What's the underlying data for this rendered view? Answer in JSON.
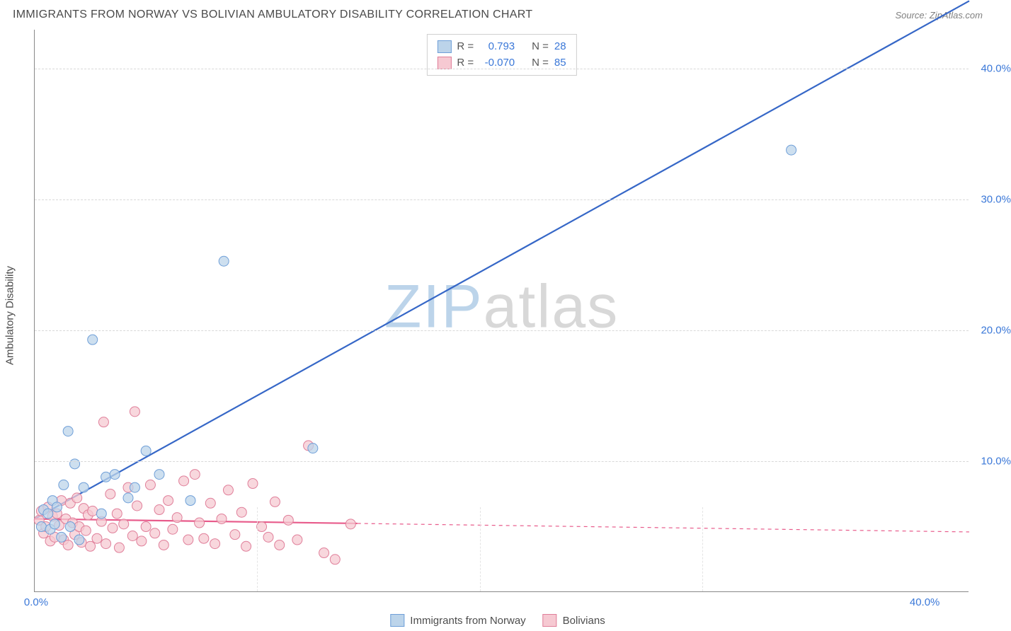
{
  "header": {
    "title": "IMMIGRANTS FROM NORWAY VS BOLIVIAN AMBULATORY DISABILITY CORRELATION CHART",
    "source_prefix": "Source: ",
    "source": "ZipAtlas.com"
  },
  "axes": {
    "y_label": "Ambulatory Disability",
    "x_domain": [
      0,
      42
    ],
    "y_domain": [
      0,
      43
    ],
    "y_ticks": [
      10,
      20,
      30,
      40
    ],
    "y_tick_labels": [
      "10.0%",
      "20.0%",
      "30.0%",
      "40.0%"
    ],
    "x_ticks_minor": [
      10,
      20,
      30
    ],
    "x_tick_left_label": "0.0%",
    "x_tick_right_label": "40.0%",
    "tick_color": "#3b78d8",
    "grid_color": "#d8d8d8"
  },
  "watermark": {
    "zip": "ZIP",
    "atlas": "atlas"
  },
  "series": {
    "norway": {
      "label": "Immigrants from Norway",
      "marker_fill": "#bcd4ea",
      "marker_stroke": "#6f9fd8",
      "line_color": "#3667c7",
      "line_width": 2.2,
      "marker_radius": 7,
      "fit_x": [
        0,
        42
      ],
      "fit_y": [
        5.6,
        45.2
      ],
      "points": [
        [
          0.3,
          5.0
        ],
        [
          0.4,
          6.3
        ],
        [
          0.6,
          6.0
        ],
        [
          0.7,
          4.8
        ],
        [
          0.8,
          7.0
        ],
        [
          0.9,
          5.2
        ],
        [
          1.0,
          6.5
        ],
        [
          1.2,
          4.2
        ],
        [
          1.3,
          8.2
        ],
        [
          1.5,
          12.3
        ],
        [
          1.6,
          5.0
        ],
        [
          1.8,
          9.8
        ],
        [
          2.0,
          4.0
        ],
        [
          2.2,
          8.0
        ],
        [
          2.6,
          19.3
        ],
        [
          3.0,
          6.0
        ],
        [
          3.2,
          8.8
        ],
        [
          3.6,
          9.0
        ],
        [
          4.2,
          7.2
        ],
        [
          4.5,
          8.0
        ],
        [
          5.0,
          10.8
        ],
        [
          5.6,
          9.0
        ],
        [
          7.0,
          7.0
        ],
        [
          8.5,
          25.3
        ],
        [
          12.5,
          11.0
        ],
        [
          34.0,
          33.8
        ]
      ]
    },
    "bolivian": {
      "label": "Bolivians",
      "marker_fill": "#f6c9d2",
      "marker_stroke": "#e07f9a",
      "line_color": "#e85b8b",
      "line_width": 2.2,
      "marker_radius": 7,
      "fit_solid_x": [
        0,
        14.5
      ],
      "fit_solid_y": [
        5.6,
        5.25
      ],
      "fit_dash_x": [
        14.5,
        42
      ],
      "fit_dash_y": [
        5.25,
        4.6
      ],
      "points": [
        [
          0.2,
          5.5
        ],
        [
          0.3,
          6.2
        ],
        [
          0.4,
          4.5
        ],
        [
          0.5,
          5.0
        ],
        [
          0.6,
          6.5
        ],
        [
          0.7,
          3.9
        ],
        [
          0.8,
          5.8
        ],
        [
          0.9,
          4.2
        ],
        [
          1.0,
          6.0
        ],
        [
          1.1,
          5.1
        ],
        [
          1.2,
          7.0
        ],
        [
          1.3,
          4.0
        ],
        [
          1.4,
          5.6
        ],
        [
          1.5,
          3.6
        ],
        [
          1.6,
          6.8
        ],
        [
          1.7,
          5.3
        ],
        [
          1.8,
          4.4
        ],
        [
          1.9,
          7.2
        ],
        [
          2.0,
          5.0
        ],
        [
          2.1,
          3.8
        ],
        [
          2.2,
          6.4
        ],
        [
          2.3,
          4.7
        ],
        [
          2.4,
          5.9
        ],
        [
          2.5,
          3.5
        ],
        [
          2.6,
          6.2
        ],
        [
          2.8,
          4.1
        ],
        [
          3.0,
          5.4
        ],
        [
          3.1,
          13.0
        ],
        [
          3.2,
          3.7
        ],
        [
          3.4,
          7.5
        ],
        [
          3.5,
          4.9
        ],
        [
          3.7,
          6.0
        ],
        [
          3.8,
          3.4
        ],
        [
          4.0,
          5.2
        ],
        [
          4.2,
          8.0
        ],
        [
          4.4,
          4.3
        ],
        [
          4.5,
          13.8
        ],
        [
          4.6,
          6.6
        ],
        [
          4.8,
          3.9
        ],
        [
          5.0,
          5.0
        ],
        [
          5.2,
          8.2
        ],
        [
          5.4,
          4.5
        ],
        [
          5.6,
          6.3
        ],
        [
          5.8,
          3.6
        ],
        [
          6.0,
          7.0
        ],
        [
          6.2,
          4.8
        ],
        [
          6.4,
          5.7
        ],
        [
          6.7,
          8.5
        ],
        [
          6.9,
          4.0
        ],
        [
          7.2,
          9.0
        ],
        [
          7.4,
          5.3
        ],
        [
          7.6,
          4.1
        ],
        [
          7.9,
          6.8
        ],
        [
          8.1,
          3.7
        ],
        [
          8.4,
          5.6
        ],
        [
          8.7,
          7.8
        ],
        [
          9.0,
          4.4
        ],
        [
          9.3,
          6.1
        ],
        [
          9.5,
          3.5
        ],
        [
          9.8,
          8.3
        ],
        [
          10.2,
          5.0
        ],
        [
          10.5,
          4.2
        ],
        [
          10.8,
          6.9
        ],
        [
          11.0,
          3.6
        ],
        [
          11.4,
          5.5
        ],
        [
          11.8,
          4.0
        ],
        [
          12.3,
          11.2
        ],
        [
          13.0,
          3.0
        ],
        [
          13.5,
          2.5
        ],
        [
          14.2,
          5.2
        ]
      ]
    }
  },
  "legend_top": {
    "rows": [
      {
        "swatch_fill": "#bcd4ea",
        "swatch_stroke": "#6f9fd8",
        "r_label": "R =",
        "r_value": "0.793",
        "n_label": "N =",
        "n_value": "28"
      },
      {
        "swatch_fill": "#f6c9d2",
        "swatch_stroke": "#e07f9a",
        "r_label": "R =",
        "r_value": "-0.070",
        "n_label": "N =",
        "n_value": "85"
      }
    ],
    "value_color": "#3b78d8"
  },
  "legend_bottom": {
    "items": [
      {
        "swatch_fill": "#bcd4ea",
        "swatch_stroke": "#6f9fd8",
        "label": "Immigrants from Norway"
      },
      {
        "swatch_fill": "#f6c9d2",
        "swatch_stroke": "#e07f9a",
        "label": "Bolivians"
      }
    ]
  }
}
